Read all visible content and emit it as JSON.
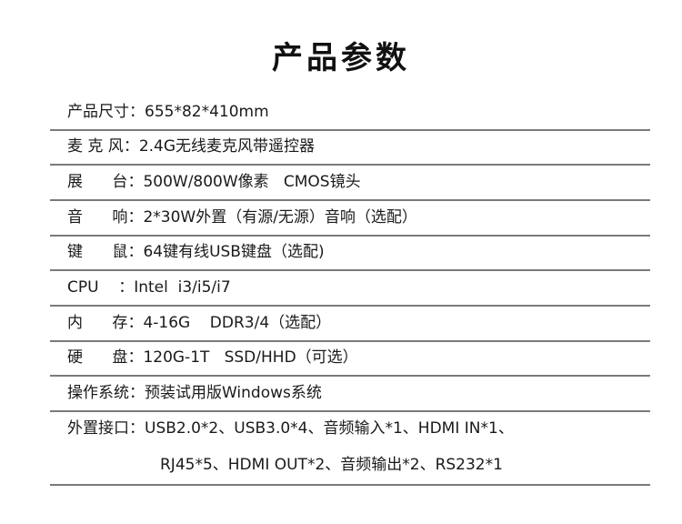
{
  "title": "产品参数",
  "specs": [
    {
      "label": "产品尺寸",
      "value": "655*82*410mm"
    },
    {
      "label": "麦 克 风",
      "value": "2.4G无线麦克风带遥控器"
    },
    {
      "label": "展      台",
      "value": "500W/800W像素   CMOS镜头"
    },
    {
      "label": "音      响",
      "value": "2*30W外置（有源/无源）音响（选配）"
    },
    {
      "label": "键      鼠",
      "value": "64键有线USB键盘（选配)"
    },
    {
      "label": "CPU    ",
      "value": "Intel  i3/i5/i7"
    },
    {
      "label": "内      存",
      "value": "4-16G    DDR3/4（选配）"
    },
    {
      "label": "硬      盘",
      "value": "120G-1T   SSD/HHD（可选）"
    },
    {
      "label": "操作系统",
      "value": "预装试用版Windows系统"
    },
    {
      "label": "外置接口",
      "value": "USB2.0*2、USB3.0*4、音频输入*1、HDMI IN*1、",
      "value_line2": "RJ45*5、HDMI OUT*2、音频输出*2、RS232*1"
    }
  ],
  "separator": "：",
  "colors": {
    "text": "#1a1a1a",
    "rule": "#7a7a7a"
  }
}
